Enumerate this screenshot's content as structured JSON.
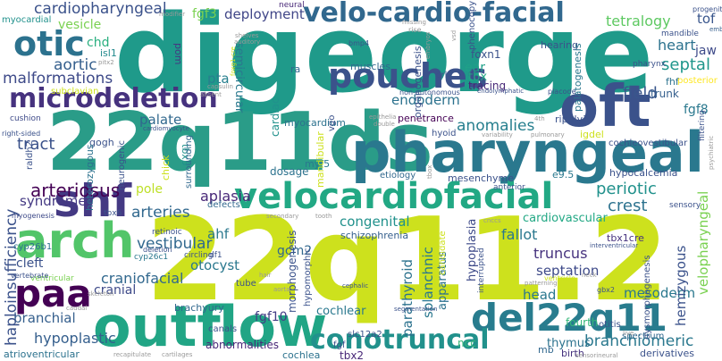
{
  "words": [
    {
      "text": "digeorge",
      "color": "#1f9a8a",
      "weight": "bold"
    },
    {
      "text": "22q11.2",
      "color": "#cde11d",
      "weight": "bold"
    },
    {
      "text": "22q11ds",
      "color": "#2a9c88",
      "weight": "bold"
    },
    {
      "text": "pharyngeal",
      "color": "#2a788e",
      "weight": "bold"
    },
    {
      "text": "oft",
      "color": "#3b528b",
      "weight": "bold"
    },
    {
      "text": "outflow",
      "color": "#21a585",
      "weight": "bold"
    },
    {
      "text": "arch",
      "color": "#52c569",
      "weight": "bold"
    },
    {
      "text": "shf",
      "color": "#443983",
      "weight": "bold"
    },
    {
      "text": "otic",
      "color": "#2c728e",
      "weight": "bold"
    },
    {
      "text": "paa",
      "color": "#440154",
      "weight": "bold"
    },
    {
      "text": "microdeletion",
      "color": "#46327e",
      "weight": "bold"
    },
    {
      "text": "velo-cardio-facial",
      "color": "#31688e",
      "weight": "bold"
    },
    {
      "text": "velocardiofacial",
      "color": "#22a884",
      "weight": "bold"
    },
    {
      "text": "pouches",
      "color": "#3b528b",
      "weight": "bold"
    },
    {
      "text": "del22q11",
      "color": "#287c8e",
      "weight": "bold"
    },
    {
      "text": "conotruncal",
      "color": "#21918c",
      "weight": "bold"
    },
    {
      "text": "cardiopharyngeal",
      "color": "#3b528b",
      "weight": "normal"
    },
    {
      "text": "fgf3",
      "color": "#7ad151",
      "weight": "normal"
    },
    {
      "text": "deployment",
      "color": "#404688",
      "weight": "normal"
    },
    {
      "text": "tetralogy",
      "color": "#5ec962",
      "weight": "normal"
    },
    {
      "text": "heart",
      "color": "#2c728e",
      "weight": "normal"
    },
    {
      "text": "tof",
      "color": "#39568c",
      "weight": "normal"
    },
    {
      "text": "septal",
      "color": "#1f968b",
      "weight": "normal"
    },
    {
      "text": "jaw",
      "color": "#3e4a89",
      "weight": "normal"
    },
    {
      "text": "vesicle",
      "color": "#7ad151",
      "weight": "normal"
    },
    {
      "text": "aortic",
      "color": "#355f8d",
      "weight": "normal"
    },
    {
      "text": "malformations",
      "color": "#3e4a89",
      "weight": "normal"
    },
    {
      "text": "chd",
      "color": "#29af7f",
      "weight": "normal"
    },
    {
      "text": "isl1",
      "color": "#238a8d",
      "weight": "normal"
    },
    {
      "text": "pta",
      "color": "#277f8e",
      "weight": "normal"
    },
    {
      "text": "pom",
      "color": "#453781",
      "weight": "normal"
    },
    {
      "text": "semicircular",
      "color": "#2a788e",
      "weight": "normal"
    },
    {
      "text": "foxn1",
      "color": "#3b528b",
      "weight": "normal"
    },
    {
      "text": "ear",
      "color": "#1fa188",
      "weight": "normal"
    },
    {
      "text": "tbx",
      "color": "#22a884",
      "weight": "normal"
    },
    {
      "text": "tracing",
      "color": "#482878",
      "weight": "normal"
    },
    {
      "text": "field",
      "color": "#39568c",
      "weight": "normal"
    },
    {
      "text": "fgf8",
      "color": "#2a788e",
      "weight": "normal"
    },
    {
      "text": "endoderm",
      "color": "#2c728e",
      "weight": "normal"
    },
    {
      "text": "palate",
      "color": "#31688e",
      "weight": "normal"
    },
    {
      "text": "anomalies",
      "color": "#277f8e",
      "weight": "normal"
    },
    {
      "text": "trunk",
      "color": "#355f8d",
      "weight": "normal"
    },
    {
      "text": "periotic",
      "color": "#21918c",
      "weight": "normal"
    },
    {
      "text": "tract",
      "color": "#3b528b",
      "weight": "normal"
    },
    {
      "text": "arteriosus",
      "color": "#440154",
      "weight": "normal"
    },
    {
      "text": "syndromes",
      "color": "#443983",
      "weight": "normal"
    },
    {
      "text": "arteries",
      "color": "#31688e",
      "weight": "normal"
    },
    {
      "text": "aplasia",
      "color": "#482878",
      "weight": "normal"
    },
    {
      "text": "pole",
      "color": "#bddf26",
      "weight": "normal"
    },
    {
      "text": "hypocalcemia",
      "color": "#3b528b",
      "weight": "normal"
    },
    {
      "text": "congenital",
      "color": "#21918c",
      "weight": "normal"
    },
    {
      "text": "crest",
      "color": "#2c728e",
      "weight": "normal"
    },
    {
      "text": "cardiovascular",
      "color": "#22a884",
      "weight": "normal"
    },
    {
      "text": "fallot",
      "color": "#2a788e",
      "weight": "normal"
    },
    {
      "text": "truncus",
      "color": "#46327e",
      "weight": "normal"
    },
    {
      "text": "septation",
      "color": "#3e4a89",
      "weight": "normal"
    },
    {
      "text": "vestibular",
      "color": "#31688e",
      "weight": "normal"
    },
    {
      "text": "ahf",
      "color": "#2a788e",
      "weight": "normal"
    },
    {
      "text": "otocyst",
      "color": "#2a788e",
      "weight": "normal"
    },
    {
      "text": "craniofacial",
      "color": "#31688e",
      "weight": "normal"
    },
    {
      "text": "cranial",
      "color": "#3e4a89",
      "weight": "normal"
    },
    {
      "text": "cleft",
      "color": "#3b528b",
      "weight": "normal"
    },
    {
      "text": "branchial",
      "color": "#355f8d",
      "weight": "normal"
    },
    {
      "text": "hypoplastic",
      "color": "#355f8d",
      "weight": "normal"
    },
    {
      "text": "fgf10",
      "color": "#433e85",
      "weight": "normal"
    },
    {
      "text": "cochlear",
      "color": "#2a788e",
      "weight": "normal"
    },
    {
      "text": "head",
      "color": "#2a788e",
      "weight": "normal"
    },
    {
      "text": "mesoderm",
      "color": "#2a788e",
      "weight": "normal"
    },
    {
      "text": "branchiomeric",
      "color": "#2a788e",
      "weight": "normal"
    },
    {
      "text": "gcm2",
      "color": "#31688e",
      "weight": "normal"
    },
    {
      "text": "haploinsufficiency",
      "color": "#3b528b",
      "weight": "normal"
    },
    {
      "text": "hemizygous",
      "color": "#3b528b",
      "weight": "normal"
    },
    {
      "text": "velopharyngeal",
      "color": "#7ad151",
      "weight": "normal"
    },
    {
      "text": "parathyroid",
      "color": "#2c728e",
      "weight": "normal"
    },
    {
      "text": "splanchnic",
      "color": "#2a788e",
      "weight": "normal"
    },
    {
      "text": "hypoplasia",
      "color": "#3e4a89",
      "weight": "normal"
    },
    {
      "text": "apparatus",
      "color": "#2c728e",
      "weight": "normal"
    },
    {
      "text": "tbx1cre",
      "color": "#46327e",
      "weight": "normal"
    },
    {
      "text": "ncc",
      "color": "#35b779",
      "weight": "normal"
    },
    {
      "text": "fourth",
      "color": "#35b779",
      "weight": "normal"
    },
    {
      "text": "thymus",
      "color": "#2c728e",
      "weight": "normal"
    },
    {
      "text": "abnormalities",
      "color": "#482878",
      "weight": "normal"
    },
    {
      "text": "cochlea",
      "color": "#2c728e",
      "weight": "normal"
    },
    {
      "text": "tbx2",
      "color": "#482878",
      "weight": "normal"
    },
    {
      "text": "mb",
      "color": "#31688e",
      "weight": "normal"
    },
    {
      "text": "birth",
      "color": "#46327e",
      "weight": "normal"
    },
    {
      "text": "derivatives",
      "color": "#3b528b",
      "weight": "normal"
    },
    {
      "text": "atrioventricular",
      "color": "#2c728e",
      "weight": "normal"
    },
    {
      "text": "myocardial",
      "color": "#21918c",
      "weight": "normal"
    },
    {
      "text": "neural",
      "color": "#482878",
      "weight": "normal"
    },
    {
      "text": "modifier",
      "color": "#999999",
      "weight": "normal"
    },
    {
      "text": "mandible",
      "color": "#3b528b",
      "weight": "normal"
    },
    {
      "text": "progenitor",
      "color": "#3b528b",
      "weight": "normal"
    },
    {
      "text": "embryonic",
      "color": "#355f8d",
      "weight": "normal"
    },
    {
      "text": "fhf",
      "color": "#2c728e",
      "weight": "normal"
    },
    {
      "text": "posterior",
      "color": "#fde725",
      "weight": "normal"
    },
    {
      "text": "subclavian",
      "color": "#cde11d",
      "weight": "normal"
    },
    {
      "text": "cushion",
      "color": "#3e4a89",
      "weight": "normal"
    },
    {
      "text": "right-sided",
      "color": "#3b528b",
      "weight": "normal"
    },
    {
      "text": "cardiomyocyte",
      "color": "#3b528b",
      "weight": "normal"
    },
    {
      "text": "myocardium",
      "color": "#2c728e",
      "weight": "normal"
    },
    {
      "text": "cardiac",
      "color": "#21918c",
      "weight": "normal"
    },
    {
      "text": "gogh",
      "color": "#3b528b",
      "weight": "normal"
    },
    {
      "text": "tbx5",
      "color": "#21918c",
      "weight": "normal"
    },
    {
      "text": "heterozygous",
      "color": "#2c728e",
      "weight": "normal"
    },
    {
      "text": "neurogenic",
      "color": "#3b528b",
      "weight": "normal"
    },
    {
      "text": "surrounding",
      "color": "#31688e",
      "weight": "normal"
    },
    {
      "text": "dosage",
      "color": "#2c728e",
      "weight": "normal"
    },
    {
      "text": "myf5",
      "color": "#2a788e",
      "weight": "normal"
    },
    {
      "text": "mesenchyme",
      "color": "#3b528b",
      "weight": "normal"
    },
    {
      "text": "e9.5",
      "color": "#2a788e",
      "weight": "normal"
    },
    {
      "text": "anterior",
      "color": "#3b528b",
      "weight": "normal"
    },
    {
      "text": "etiology",
      "color": "#31688e",
      "weight": "normal"
    },
    {
      "text": "schizophrenia",
      "color": "#355f8d",
      "weight": "normal"
    },
    {
      "text": "hyoid",
      "color": "#3b528b",
      "weight": "normal"
    },
    {
      "text": "cochleovestibular",
      "color": "#3b528b",
      "weight": "normal"
    },
    {
      "text": "ripply3",
      "color": "#3b528b",
      "weight": "normal"
    },
    {
      "text": "penetrance",
      "color": "#440154",
      "weight": "normal"
    },
    {
      "text": "crkl",
      "color": "#3b528b",
      "weight": "normal"
    },
    {
      "text": "muscles",
      "color": "#31688e",
      "weight": "normal"
    },
    {
      "text": "ra",
      "color": "#31688e",
      "weight": "normal"
    },
    {
      "text": "hearing",
      "color": "#3b528b",
      "weight": "normal"
    },
    {
      "text": "phenocopy",
      "color": "#3b528b",
      "weight": "normal"
    },
    {
      "text": "organogenesis",
      "color": "#3b528b",
      "weight": "normal"
    },
    {
      "text": "palatogenesis",
      "color": "#2a788e",
      "weight": "normal"
    },
    {
      "text": "pharynx",
      "color": "#3b528b",
      "weight": "normal"
    },
    {
      "text": "filtering",
      "color": "#3b528b",
      "weight": "normal"
    },
    {
      "text": "psychiatric",
      "color": "#999999",
      "weight": "normal"
    },
    {
      "text": "sensory",
      "color": "#3b528b",
      "weight": "normal"
    },
    {
      "text": "cyp26b1",
      "color": "#2c728e",
      "weight": "normal"
    },
    {
      "text": "myogenesis",
      "color": "#3e4a89",
      "weight": "normal"
    },
    {
      "text": "raldh2",
      "color": "#3b528b",
      "weight": "normal"
    },
    {
      "text": "ventricular",
      "color": "#7ad151",
      "weight": "normal"
    },
    {
      "text": "vertebrate",
      "color": "#3b528b",
      "weight": "normal"
    },
    {
      "text": "cyp26c1",
      "color": "#2a788e",
      "weight": "normal"
    },
    {
      "text": "tbx6",
      "color": "#3b528b",
      "weight": "normal"
    },
    {
      "text": "defects",
      "color": "#31688e",
      "weight": "normal"
    },
    {
      "text": "retinoic",
      "color": "#3b528b",
      "weight": "normal"
    },
    {
      "text": "deletion",
      "color": "#3b528b",
      "weight": "normal"
    },
    {
      "text": "circling",
      "color": "#3b528b",
      "weight": "normal"
    },
    {
      "text": "df1",
      "color": "#3b528b",
      "weight": "normal"
    },
    {
      "text": "brachyury",
      "color": "#31688e",
      "weight": "normal"
    },
    {
      "text": "canals",
      "color": "#3b528b",
      "weight": "normal"
    },
    {
      "text": "tube",
      "color": "#3b528b",
      "weight": "normal"
    },
    {
      "text": "morphogenesis",
      "color": "#3b528b",
      "weight": "normal"
    },
    {
      "text": "hypomorphic",
      "color": "#3b528b",
      "weight": "normal"
    },
    {
      "text": "aorta",
      "color": "#999999",
      "weight": "normal"
    },
    {
      "text": "hair",
      "color": "#999999",
      "weight": "normal"
    },
    {
      "text": "cephalic",
      "color": "#3b528b",
      "weight": "normal"
    },
    {
      "text": "secondary",
      "color": "#999999",
      "weight": "normal"
    },
    {
      "text": "tooth",
      "color": "#999999",
      "weight": "normal"
    },
    {
      "text": "chick",
      "color": "#cde11d",
      "weight": "normal"
    },
    {
      "text": "skeleton",
      "color": "#999999",
      "weight": "normal"
    },
    {
      "text": "caudal",
      "color": "#999999",
      "weight": "normal"
    },
    {
      "text": "recapitulate",
      "color": "#999999",
      "weight": "normal"
    },
    {
      "text": "cartilages",
      "color": "#999999",
      "weight": "normal"
    },
    {
      "text": "fgf",
      "color": "#3b528b",
      "weight": "normal"
    },
    {
      "text": "slc12a2",
      "color": "#3b528b",
      "weight": "normal"
    },
    {
      "text": "segmentation",
      "color": "#3b528b",
      "weight": "normal"
    },
    {
      "text": "candidate",
      "color": "#cde11d",
      "weight": "normal"
    },
    {
      "text": "interrupted",
      "color": "#3b528b",
      "weight": "normal"
    },
    {
      "text": "interventricular",
      "color": "#3b528b",
      "weight": "normal"
    },
    {
      "text": "patterning",
      "color": "#999999",
      "weight": "normal"
    },
    {
      "text": "neck",
      "color": "#999999",
      "weight": "normal"
    },
    {
      "text": "gbx2",
      "color": "#3b528b",
      "weight": "normal"
    },
    {
      "text": "otitis",
      "color": "#3b528b",
      "weight": "normal"
    },
    {
      "text": "dysmorphogenesis",
      "color": "#3b528b",
      "weight": "normal"
    },
    {
      "text": "spectrum",
      "color": "#31688e",
      "weight": "normal"
    },
    {
      "text": "live",
      "color": "#999999",
      "weight": "normal"
    },
    {
      "text": "sensorineural",
      "color": "#999999",
      "weight": "normal"
    },
    {
      "text": "ventricle",
      "color": "#cde11d",
      "weight": "normal"
    },
    {
      "text": "cnccs",
      "color": "#999999",
      "weight": "normal"
    },
    {
      "text": "tbox",
      "color": "#999999",
      "weight": "normal"
    },
    {
      "text": "igdel",
      "color": "#cde11d",
      "weight": "normal"
    },
    {
      "text": "variability",
      "color": "#999999",
      "weight": "normal"
    },
    {
      "text": "pulmonary",
      "color": "#999999",
      "weight": "normal"
    },
    {
      "text": "double",
      "color": "#999999",
      "weight": "normal"
    },
    {
      "text": "epithelia",
      "color": "#999999",
      "weight": "normal"
    },
    {
      "text": "vgo",
      "color": "#3b528b",
      "weight": "normal"
    },
    {
      "text": "mandibular",
      "color": "#cde11d",
      "weight": "normal"
    },
    {
      "text": "non-autonomous",
      "color": "#3b528b",
      "weight": "normal"
    },
    {
      "text": "endolymphatic",
      "color": "#3b528b",
      "weight": "normal"
    },
    {
      "text": "placode",
      "color": "#3b528b",
      "weight": "normal"
    },
    {
      "text": "4th",
      "color": "#999999",
      "weight": "normal"
    },
    {
      "text": "bmp4",
      "color": "#3b528b",
      "weight": "normal"
    },
    {
      "text": "embryos",
      "color": "#999999",
      "weight": "normal"
    },
    {
      "text": "vsd",
      "color": "#999999",
      "weight": "normal"
    },
    {
      "text": "missing",
      "color": "#999999",
      "weight": "normal"
    },
    {
      "text": "rise",
      "color": "#999999",
      "weight": "normal"
    },
    {
      "text": "shelves",
      "color": "#999999",
      "weight": "normal"
    },
    {
      "text": "auditory",
      "color": "#999999",
      "weight": "normal"
    },
    {
      "text": "capsulin",
      "color": "#999999",
      "weight": "normal"
    },
    {
      "text": "absent",
      "color": "#999999",
      "weight": "normal"
    },
    {
      "text": "pitx2",
      "color": "#999999",
      "weight": "normal"
    },
    {
      "text": "foxg1-cre",
      "color": "#cde11d",
      "weight": "normal"
    }
  ]
}
